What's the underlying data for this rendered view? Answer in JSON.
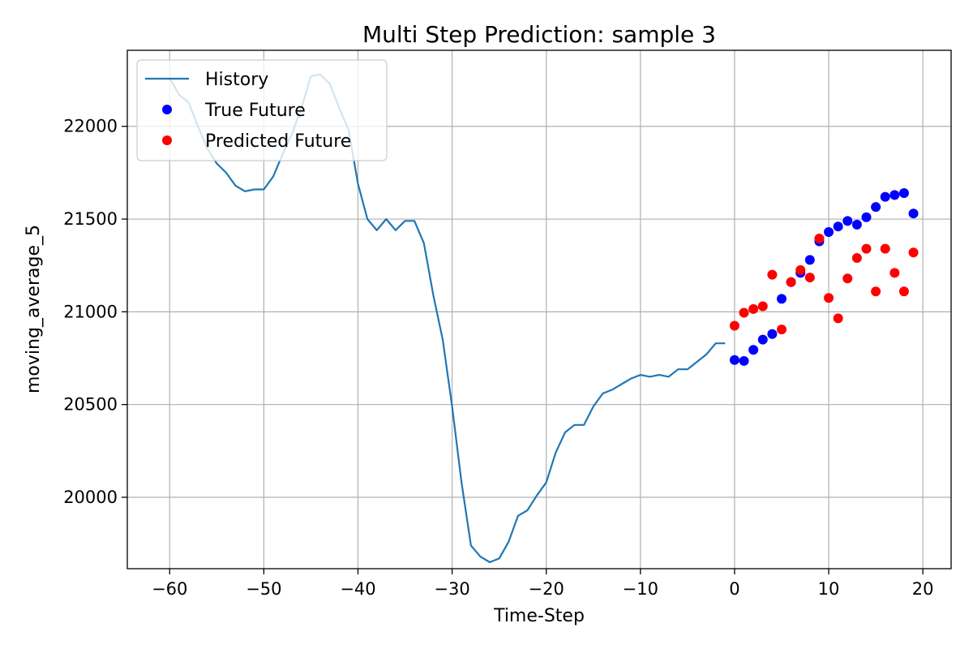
{
  "chart_data": {
    "type": "line",
    "title": "Multi Step Prediction: sample 3",
    "xlabel": "Time-Step",
    "ylabel": "moving_average_5",
    "xlim": [
      -64.5,
      23
    ],
    "ylim": [
      19615,
      22410
    ],
    "xticks": [
      -60,
      -50,
      -40,
      -30,
      -20,
      -10,
      0,
      10,
      20
    ],
    "xtick_labels": [
      "−60",
      "−50",
      "−40",
      "−30",
      "−20",
      "−10",
      "0",
      "10",
      "20"
    ],
    "yticks": [
      20000,
      20500,
      21000,
      21500,
      22000
    ],
    "ytick_labels": [
      "20000",
      "20500",
      "21000",
      "21500",
      "22000"
    ],
    "grid": true,
    "legend_position": "top-left",
    "series": [
      {
        "name": "History",
        "kind": "line",
        "color": "#1f77b4",
        "x": [
          -60,
          -59,
          -58,
          -57,
          -56,
          -55,
          -54,
          -53,
          -52,
          -51,
          -50,
          -49,
          -48,
          -47,
          -46,
          -45,
          -44,
          -43,
          -42,
          -41,
          -40,
          -39,
          -38,
          -37,
          -36,
          -35,
          -34,
          -33,
          -32,
          -31,
          -30,
          -29,
          -28,
          -27,
          -26,
          -25,
          -24,
          -23,
          -22,
          -21,
          -20,
          -19,
          -18,
          -17,
          -16,
          -15,
          -14,
          -13,
          -12,
          -11,
          -10,
          -9,
          -8,
          -7,
          -6,
          -5,
          -4,
          -3,
          -2,
          -1
        ],
        "y": [
          22260,
          22170,
          22130,
          22000,
          21880,
          21800,
          21750,
          21680,
          21650,
          21660,
          21660,
          21730,
          21850,
          21960,
          22100,
          22270,
          22280,
          22230,
          22100,
          21980,
          21690,
          21500,
          21440,
          21500,
          21440,
          21490,
          21490,
          21370,
          21090,
          20850,
          20490,
          20080,
          19740,
          19680,
          19650,
          19670,
          19760,
          19900,
          19930,
          20010,
          20080,
          20240,
          20350,
          20390,
          20390,
          20490,
          20560,
          20580,
          20610,
          20640,
          20660,
          20650,
          20660,
          20650,
          20690,
          20690,
          20730,
          20770,
          20830,
          20830
        ]
      },
      {
        "name": "True Future",
        "kind": "scatter",
        "color": "#0000ff",
        "x": [
          0,
          1,
          2,
          3,
          4,
          5,
          6,
          7,
          8,
          9,
          10,
          11,
          12,
          13,
          14,
          15,
          16,
          17,
          18,
          19
        ],
        "y": [
          20740,
          20735,
          20795,
          20850,
          20880,
          21070,
          21160,
          21210,
          21280,
          21380,
          21430,
          21460,
          21490,
          21470,
          21510,
          21565,
          21620,
          21630,
          21640,
          21530
        ]
      },
      {
        "name": "Predicted Future",
        "kind": "scatter",
        "color": "#ff0000",
        "x": [
          0,
          1,
          2,
          3,
          4,
          5,
          6,
          7,
          8,
          9,
          10,
          11,
          12,
          13,
          14,
          15,
          16,
          17,
          18,
          19
        ],
        "y": [
          20925,
          20995,
          21015,
          21030,
          21200,
          20905,
          21160,
          21225,
          21185,
          21395,
          21075,
          20965,
          21180,
          21290,
          21340,
          21110,
          21340,
          21210,
          21110,
          21320
        ]
      }
    ]
  }
}
